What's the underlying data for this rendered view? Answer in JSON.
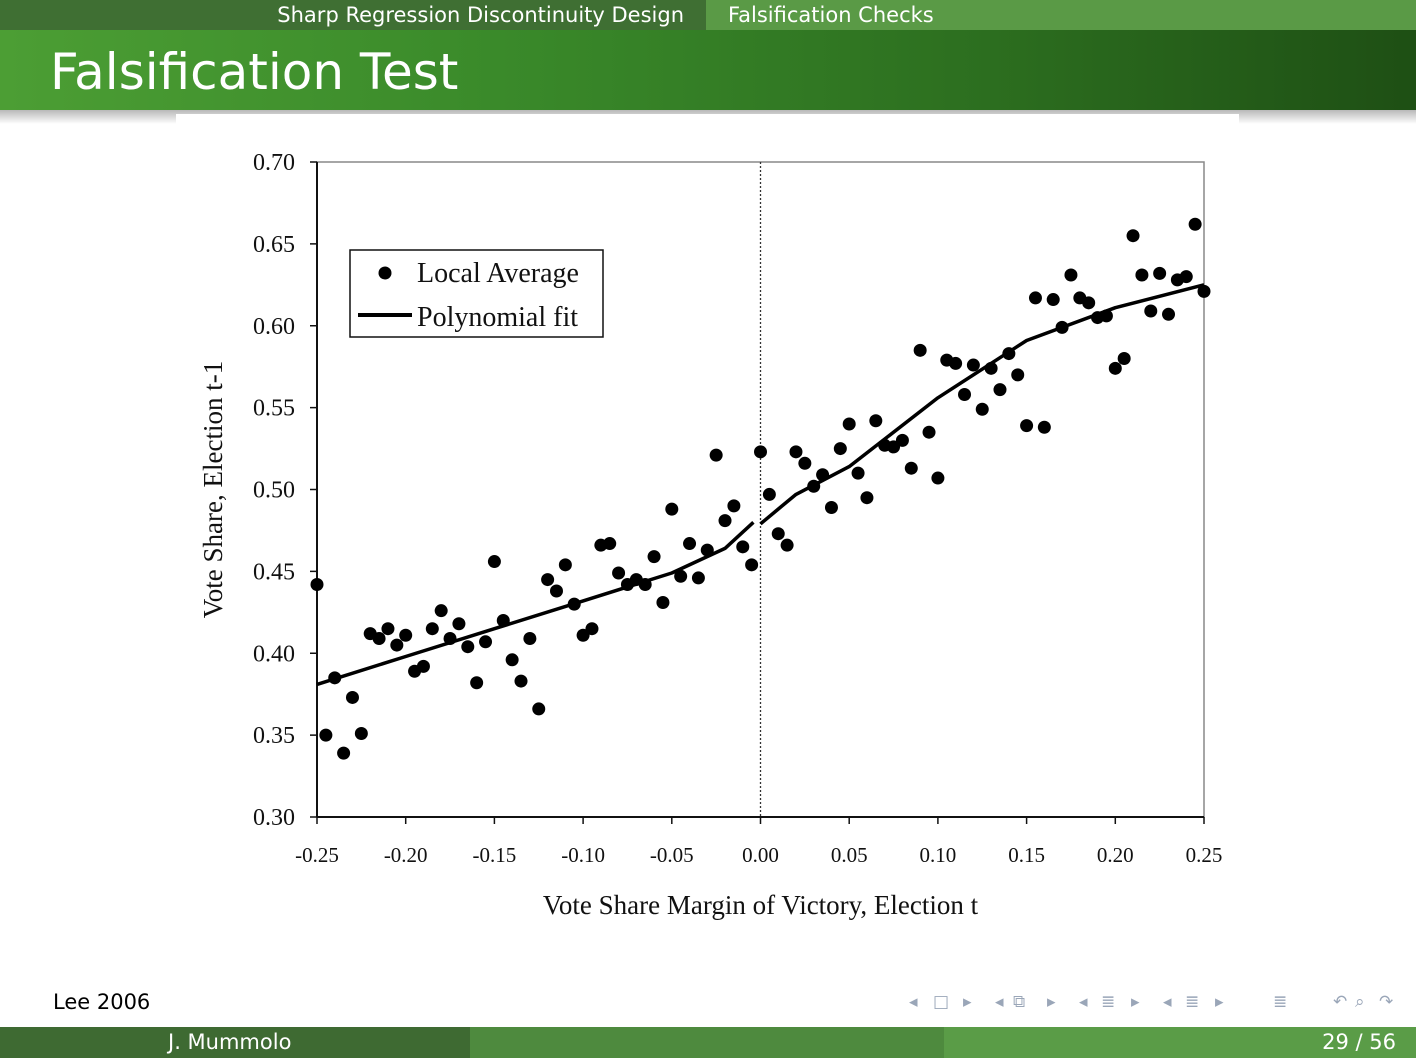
{
  "nav": {
    "section": "Sharp Regression Discontinuity Design",
    "subsection": "Falsification Checks"
  },
  "slide_title": "Falsification Test",
  "citation": "Lee 2006",
  "footer": {
    "author": "J. Mummolo",
    "page": "29 / 56"
  },
  "colors": {
    "title_green": "#3a8a2a",
    "nav_green": "#4a7a3c",
    "footer_green": "#4e8a3e"
  },
  "nav_icons": [
    "nav-prev-frame-icon",
    "nav-frame-icon",
    "nav-next-frame-icon",
    "nav-prev-subsection-icon",
    "nav-subsection-icon",
    "nav-next-subsection-icon",
    "nav-prev-section-icon",
    "nav-section-icon",
    "nav-next-section-icon",
    "nav-align-icon",
    "nav-back-icon",
    "nav-search-icon",
    "nav-forward-icon"
  ],
  "chart_data": {
    "type": "scatter",
    "xlabel": "Vote Share Margin of Victory, Election t",
    "ylabel": "Vote Share, Election t-1",
    "xlim": [
      -0.25,
      0.25
    ],
    "ylim": [
      0.3,
      0.7
    ],
    "xticks": [
      "-0.25",
      "-0.20",
      "-0.15",
      "-0.10",
      "-0.05",
      "0.00",
      "0.05",
      "0.10",
      "0.15",
      "0.20",
      "0.25"
    ],
    "yticks": [
      "0.30",
      "0.35",
      "0.40",
      "0.45",
      "0.50",
      "0.55",
      "0.60",
      "0.65",
      "0.70"
    ],
    "cutoff": 0.0,
    "grid": false,
    "legend_position": "top-left",
    "series": [
      {
        "name": "Local Average",
        "kind": "points",
        "points": [
          [
            -0.25,
            0.442
          ],
          [
            -0.245,
            0.35
          ],
          [
            -0.24,
            0.385
          ],
          [
            -0.235,
            0.339
          ],
          [
            -0.23,
            0.373
          ],
          [
            -0.225,
            0.351
          ],
          [
            -0.22,
            0.412
          ],
          [
            -0.215,
            0.409
          ],
          [
            -0.21,
            0.415
          ],
          [
            -0.205,
            0.405
          ],
          [
            -0.2,
            0.411
          ],
          [
            -0.195,
            0.389
          ],
          [
            -0.19,
            0.392
          ],
          [
            -0.185,
            0.415
          ],
          [
            -0.18,
            0.426
          ],
          [
            -0.175,
            0.409
          ],
          [
            -0.17,
            0.418
          ],
          [
            -0.165,
            0.404
          ],
          [
            -0.16,
            0.382
          ],
          [
            -0.155,
            0.407
          ],
          [
            -0.15,
            0.456
          ],
          [
            -0.145,
            0.42
          ],
          [
            -0.14,
            0.396
          ],
          [
            -0.135,
            0.383
          ],
          [
            -0.13,
            0.409
          ],
          [
            -0.125,
            0.366
          ],
          [
            -0.12,
            0.445
          ],
          [
            -0.115,
            0.438
          ],
          [
            -0.11,
            0.454
          ],
          [
            -0.105,
            0.43
          ],
          [
            -0.1,
            0.411
          ],
          [
            -0.095,
            0.415
          ],
          [
            -0.09,
            0.466
          ],
          [
            -0.085,
            0.467
          ],
          [
            -0.08,
            0.449
          ],
          [
            -0.075,
            0.442
          ],
          [
            -0.07,
            0.445
          ],
          [
            -0.065,
            0.442
          ],
          [
            -0.06,
            0.459
          ],
          [
            -0.055,
            0.431
          ],
          [
            -0.05,
            0.488
          ],
          [
            -0.045,
            0.447
          ],
          [
            -0.04,
            0.467
          ],
          [
            -0.035,
            0.446
          ],
          [
            -0.03,
            0.463
          ],
          [
            -0.025,
            0.521
          ],
          [
            -0.02,
            0.481
          ],
          [
            -0.015,
            0.49
          ],
          [
            -0.01,
            0.465
          ],
          [
            -0.005,
            0.454
          ],
          [
            0.0,
            0.523
          ],
          [
            0.005,
            0.497
          ],
          [
            0.01,
            0.473
          ],
          [
            0.015,
            0.466
          ],
          [
            0.02,
            0.523
          ],
          [
            0.025,
            0.516
          ],
          [
            0.03,
            0.502
          ],
          [
            0.035,
            0.509
          ],
          [
            0.04,
            0.489
          ],
          [
            0.045,
            0.525
          ],
          [
            0.05,
            0.54
          ],
          [
            0.055,
            0.51
          ],
          [
            0.06,
            0.495
          ],
          [
            0.065,
            0.542
          ],
          [
            0.07,
            0.527
          ],
          [
            0.075,
            0.526
          ],
          [
            0.08,
            0.53
          ],
          [
            0.085,
            0.513
          ],
          [
            0.09,
            0.585
          ],
          [
            0.095,
            0.535
          ],
          [
            0.1,
            0.507
          ],
          [
            0.105,
            0.579
          ],
          [
            0.11,
            0.577
          ],
          [
            0.115,
            0.558
          ],
          [
            0.12,
            0.576
          ],
          [
            0.125,
            0.549
          ],
          [
            0.13,
            0.574
          ],
          [
            0.135,
            0.561
          ],
          [
            0.14,
            0.583
          ],
          [
            0.145,
            0.57
          ],
          [
            0.15,
            0.539
          ],
          [
            0.155,
            0.617
          ],
          [
            0.16,
            0.538
          ],
          [
            0.165,
            0.616
          ],
          [
            0.17,
            0.599
          ],
          [
            0.175,
            0.631
          ],
          [
            0.18,
            0.617
          ],
          [
            0.185,
            0.614
          ],
          [
            0.19,
            0.605
          ],
          [
            0.195,
            0.606
          ],
          [
            0.2,
            0.574
          ],
          [
            0.205,
            0.58
          ],
          [
            0.21,
            0.655
          ],
          [
            0.215,
            0.631
          ],
          [
            0.22,
            0.609
          ],
          [
            0.225,
            0.632
          ],
          [
            0.23,
            0.607
          ],
          [
            0.235,
            0.628
          ],
          [
            0.24,
            0.63
          ],
          [
            0.245,
            0.662
          ],
          [
            0.25,
            0.621
          ]
        ]
      },
      {
        "name": "Polynomial fit",
        "kind": "line",
        "segments": [
          [
            [
              -0.25,
              0.381
            ],
            [
              -0.2,
              0.398
            ],
            [
              -0.15,
              0.415
            ],
            [
              -0.1,
              0.432
            ],
            [
              -0.05,
              0.449
            ],
            [
              -0.02,
              0.464
            ],
            [
              -0.004,
              0.48
            ]
          ],
          [
            [
              0.0,
              0.479
            ],
            [
              0.01,
              0.488
            ],
            [
              0.02,
              0.497
            ],
            [
              0.05,
              0.514
            ],
            [
              0.1,
              0.556
            ],
            [
              0.15,
              0.591
            ],
            [
              0.2,
              0.611
            ],
            [
              0.25,
              0.625
            ]
          ]
        ]
      }
    ]
  }
}
